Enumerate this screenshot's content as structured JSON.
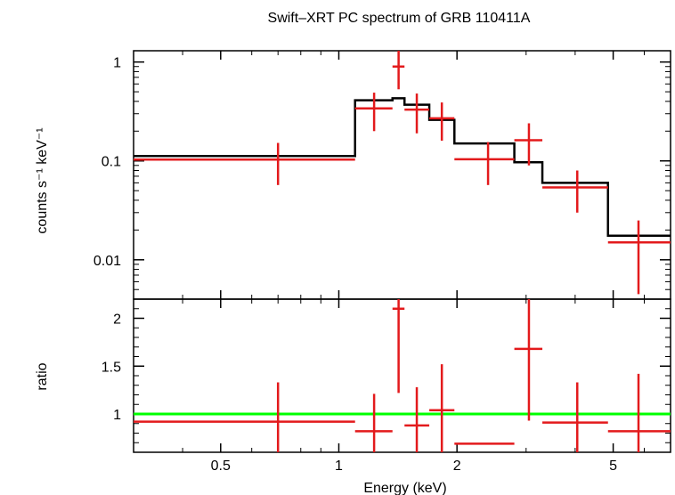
{
  "title": "Swift–XRT PC spectrum of GRB 110411A",
  "colors": {
    "data": "#e31a1c",
    "model": "#000000",
    "unity": "#00ff00"
  },
  "chart_data": [
    {
      "type": "scatter",
      "panel": "spectrum",
      "title": "Swift–XRT PC spectrum of GRB 110411A",
      "ylabel": "counts s⁻¹ keV⁻¹",
      "yscale": "log",
      "xscale": "log",
      "xlim": [
        0.3,
        7.0
      ],
      "ylim": [
        0.004,
        1.3
      ],
      "ytick_labels": [
        "0.01",
        "0.1",
        "1"
      ],
      "ytick_values": [
        0.01,
        0.1,
        1
      ],
      "series": [
        {
          "kind": "data",
          "points": [
            {
              "x": 0.7,
              "xlo": 0.3,
              "xhi": 1.1,
              "y": 0.103,
              "ylo": 0.057,
              "yhi": 0.152
            },
            {
              "x": 1.23,
              "xlo": 1.1,
              "xhi": 1.37,
              "y": 0.34,
              "ylo": 0.2,
              "yhi": 0.49
            },
            {
              "x": 1.42,
              "xlo": 1.37,
              "xhi": 1.47,
              "y": 0.9,
              "ylo": 0.53,
              "yhi": 1.3
            },
            {
              "x": 1.58,
              "xlo": 1.47,
              "xhi": 1.7,
              "y": 0.33,
              "ylo": 0.19,
              "yhi": 0.48
            },
            {
              "x": 1.83,
              "xlo": 1.7,
              "xhi": 1.97,
              "y": 0.27,
              "ylo": 0.16,
              "yhi": 0.39
            },
            {
              "x": 2.4,
              "xlo": 1.97,
              "xhi": 2.8,
              "y": 0.104,
              "ylo": 0.057,
              "yhi": 0.155
            },
            {
              "x": 3.05,
              "xlo": 2.8,
              "xhi": 3.3,
              "y": 0.162,
              "ylo": 0.09,
              "yhi": 0.24
            },
            {
              "x": 4.05,
              "xlo": 3.3,
              "xhi": 4.85,
              "y": 0.054,
              "ylo": 0.03,
              "yhi": 0.08
            },
            {
              "x": 5.8,
              "xlo": 4.85,
              "xhi": 7.0,
              "y": 0.015,
              "ylo": 0.0045,
              "yhi": 0.025
            }
          ]
        },
        {
          "kind": "model",
          "steps": [
            {
              "xlo": 0.3,
              "xhi": 1.1,
              "y": 0.112
            },
            {
              "xlo": 1.1,
              "xhi": 1.37,
              "y": 0.41
            },
            {
              "xlo": 1.37,
              "xhi": 1.47,
              "y": 0.43
            },
            {
              "xlo": 1.47,
              "xhi": 1.7,
              "y": 0.37
            },
            {
              "xlo": 1.7,
              "xhi": 1.97,
              "y": 0.26
            },
            {
              "xlo": 1.97,
              "xhi": 2.8,
              "y": 0.15
            },
            {
              "xlo": 2.8,
              "xhi": 3.3,
              "y": 0.097
            },
            {
              "xlo": 3.3,
              "xhi": 4.85,
              "y": 0.06
            },
            {
              "xlo": 4.85,
              "xhi": 7.0,
              "y": 0.0175
            }
          ]
        }
      ]
    },
    {
      "type": "scatter",
      "panel": "ratio",
      "xlabel": "Energy (keV)",
      "ylabel": "ratio",
      "xscale": "log",
      "yscale": "linear",
      "xlim": [
        0.3,
        7.0
      ],
      "ylim": [
        0.6,
        2.2
      ],
      "xtick_labels": [
        "0.5",
        "1",
        "2",
        "5"
      ],
      "xtick_values": [
        0.5,
        1,
        2,
        5
      ],
      "ytick_labels": [
        "1",
        "1.5",
        "2"
      ],
      "ytick_values": [
        1,
        1.5,
        2
      ],
      "reference_line": 1.0,
      "series": [
        {
          "kind": "data",
          "points": [
            {
              "x": 0.7,
              "xlo": 0.3,
              "xhi": 1.1,
              "y": 0.92,
              "ylo": 0.51,
              "yhi": 1.33
            },
            {
              "x": 1.23,
              "xlo": 1.1,
              "xhi": 1.37,
              "y": 0.82,
              "ylo": 0.4,
              "yhi": 1.21
            },
            {
              "x": 1.42,
              "xlo": 1.37,
              "xhi": 1.47,
              "y": 2.1,
              "ylo": 1.22,
              "yhi": 2.2
            },
            {
              "x": 1.58,
              "xlo": 1.47,
              "xhi": 1.7,
              "y": 0.88,
              "ylo": 0.51,
              "yhi": 1.28
            },
            {
              "x": 1.83,
              "xlo": 1.7,
              "xhi": 1.97,
              "y": 1.04,
              "ylo": 0.6,
              "yhi": 1.52
            },
            {
              "x": 2.4,
              "xlo": 1.97,
              "xhi": 2.8,
              "y": 0.69,
              "ylo": 0.6,
              "yhi": 0.6
            },
            {
              "x": 3.05,
              "xlo": 2.8,
              "xhi": 3.3,
              "y": 1.68,
              "ylo": 0.93,
              "yhi": 2.2
            },
            {
              "x": 4.05,
              "xlo": 3.3,
              "xhi": 4.85,
              "y": 0.91,
              "ylo": 0.5,
              "yhi": 1.33
            },
            {
              "x": 5.8,
              "xlo": 4.85,
              "xhi": 7.0,
              "y": 0.82,
              "ylo": 0.6,
              "yhi": 1.42
            }
          ]
        }
      ]
    }
  ]
}
